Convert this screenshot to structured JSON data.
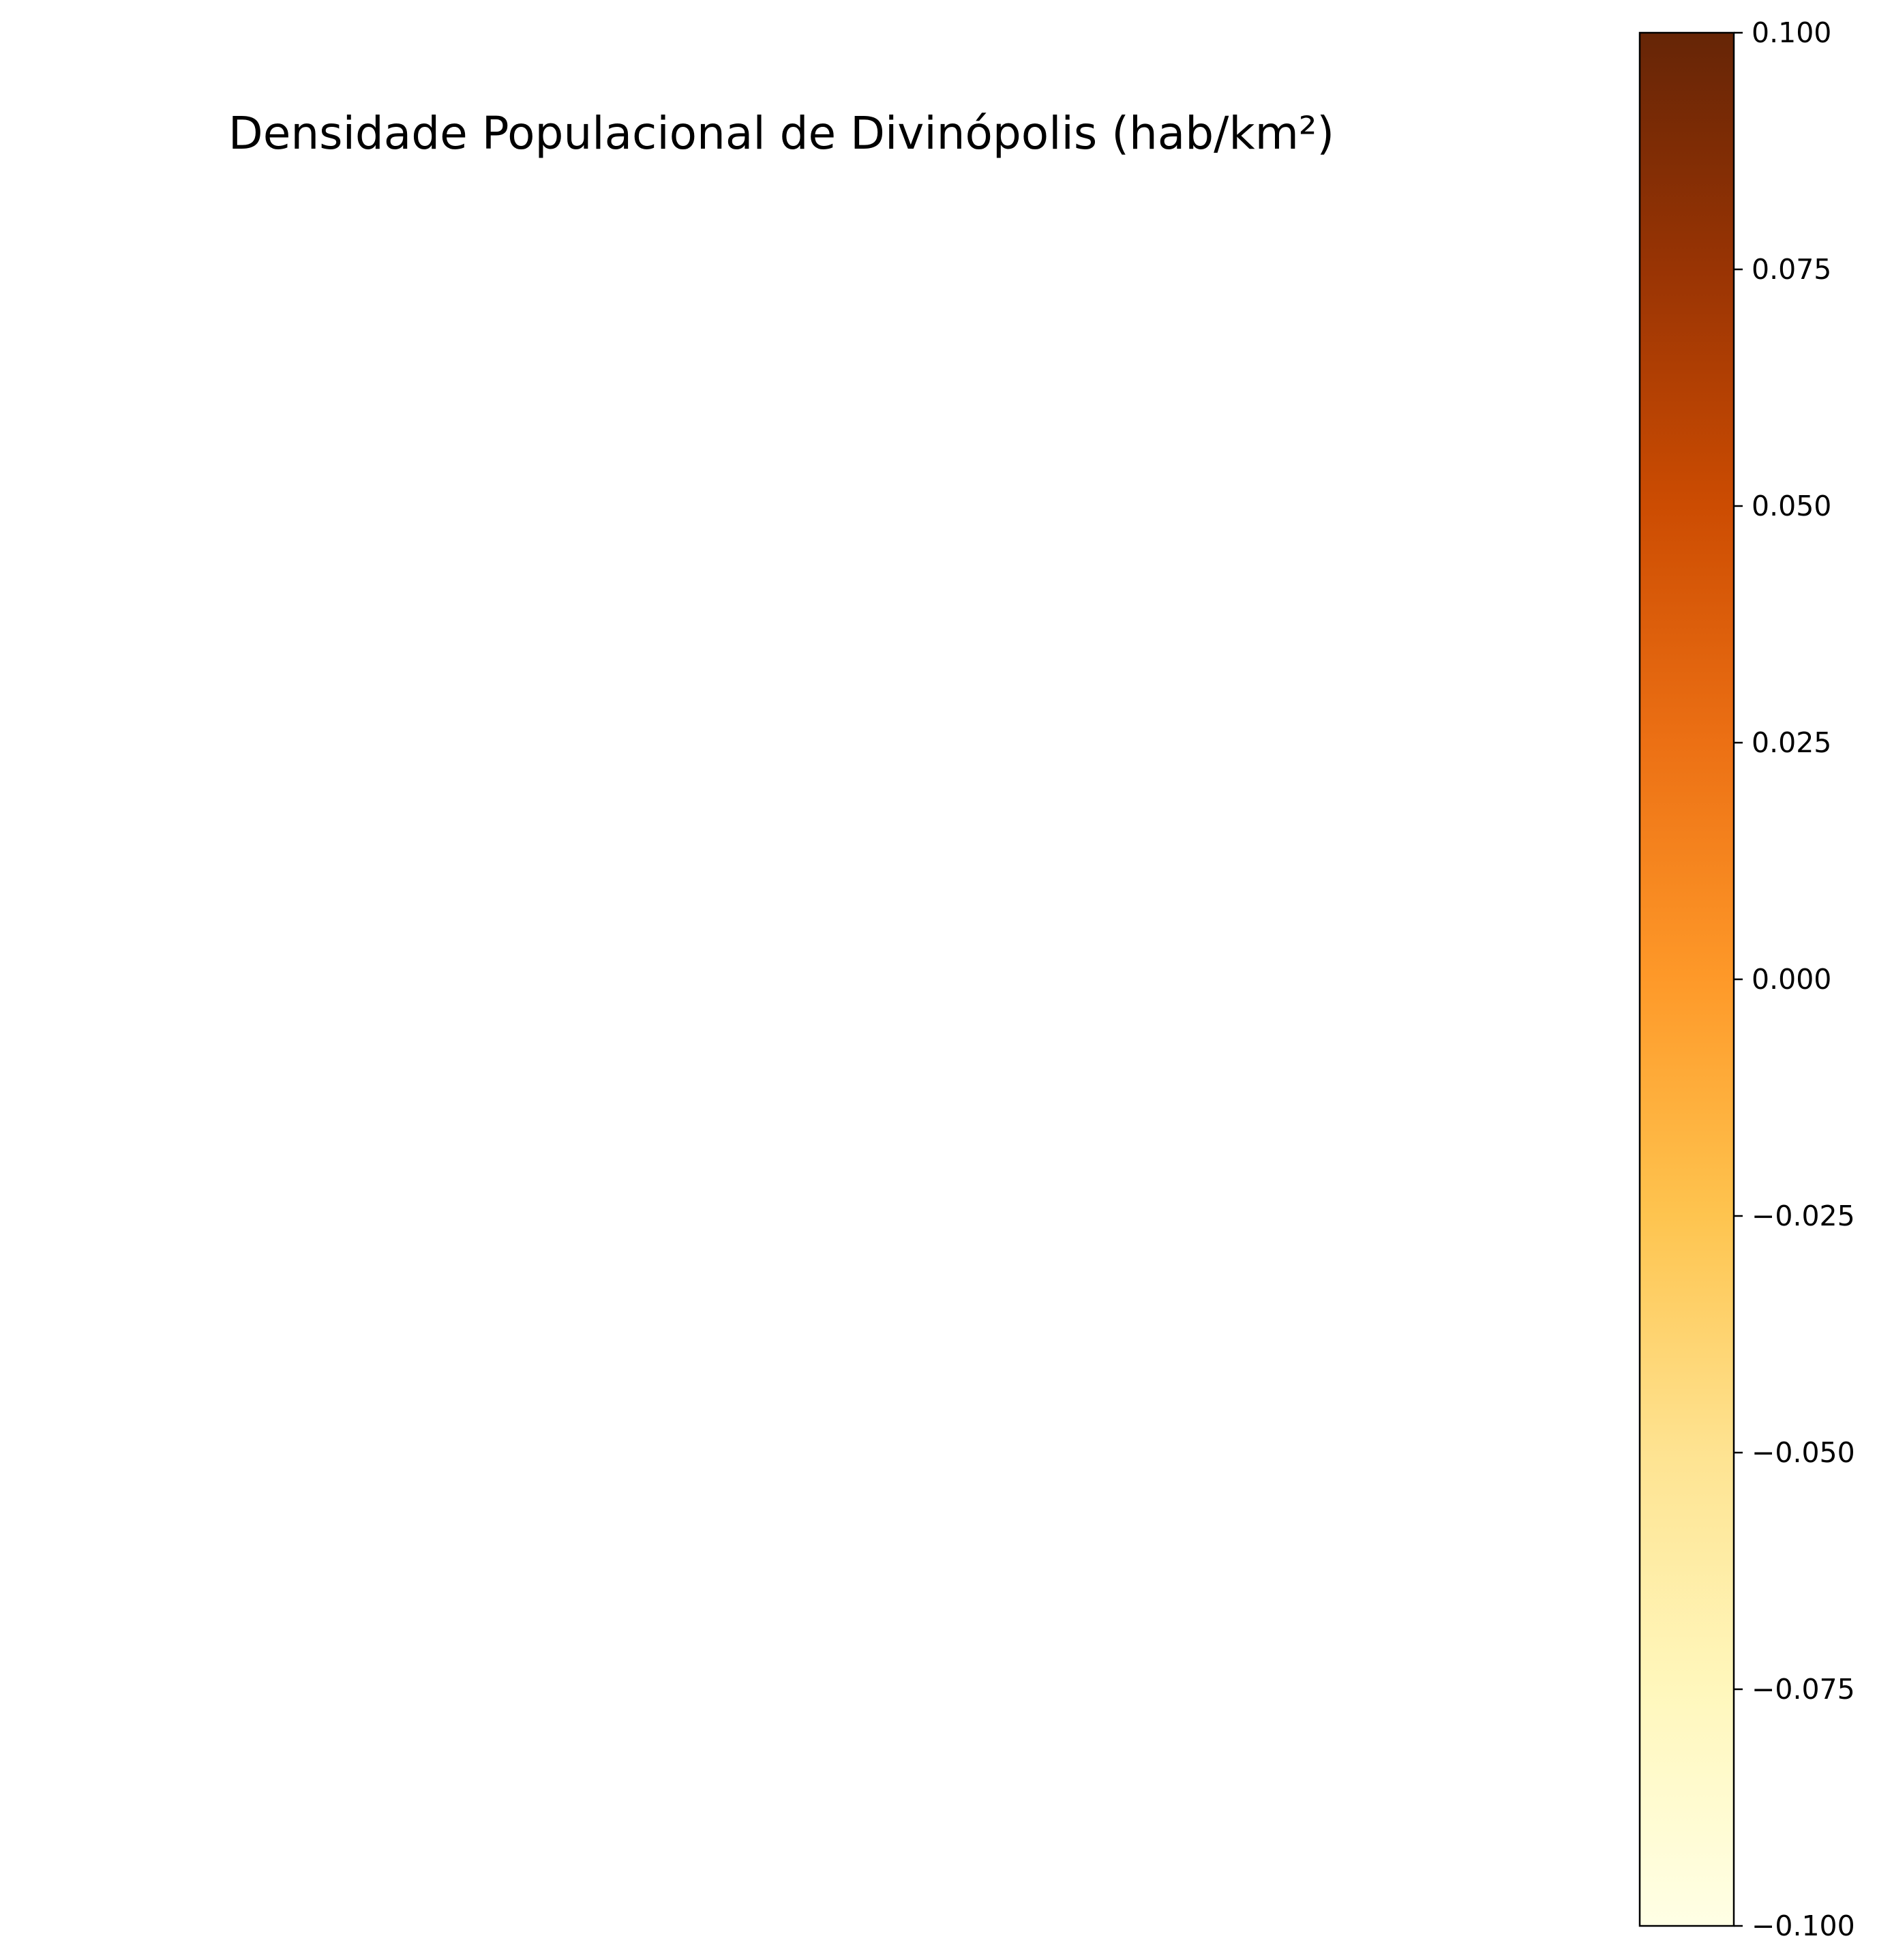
{
  "chart_data": {
    "type": "heatmap",
    "title": "Densidade Populacional de Divinópolis (hab/km²)",
    "map_regions": [],
    "colorbar": {
      "cmap": "YlOrBr",
      "range": [
        -0.1,
        0.1
      ],
      "ticks": [
        {
          "value": 0.1,
          "label": "0.100"
        },
        {
          "value": 0.075,
          "label": "0.075"
        },
        {
          "value": 0.05,
          "label": "0.050"
        },
        {
          "value": 0.025,
          "label": "0.025"
        },
        {
          "value": 0.0,
          "label": "0.000"
        },
        {
          "value": -0.025,
          "label": "−0.025"
        },
        {
          "value": -0.05,
          "label": "−0.050"
        },
        {
          "value": -0.075,
          "label": "−0.075"
        },
        {
          "value": -0.1,
          "label": "−0.100"
        }
      ],
      "color_stops": [
        {
          "value": 0.0,
          "color": "#ffffe5"
        },
        {
          "value": 0.125,
          "color": "#fff7bc"
        },
        {
          "value": 0.25,
          "color": "#fee391"
        },
        {
          "value": 0.375,
          "color": "#fec44f"
        },
        {
          "value": 0.5,
          "color": "#fe9929"
        },
        {
          "value": 0.625,
          "color": "#ec7014"
        },
        {
          "value": 0.75,
          "color": "#cc4c02"
        },
        {
          "value": 0.875,
          "color": "#993404"
        },
        {
          "value": 1.0,
          "color": "#662506"
        }
      ]
    }
  }
}
